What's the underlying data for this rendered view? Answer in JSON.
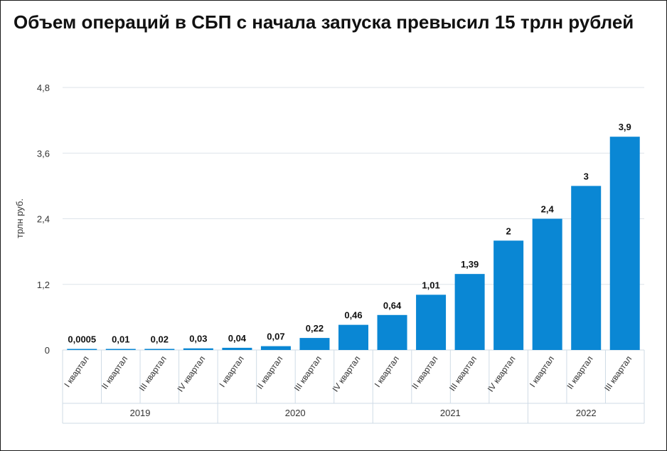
{
  "title": "Объем операций в СБП с начала запуска превысил 15 трлн рублей",
  "colors": {
    "bar": "#0a87d4",
    "grid": "#dde3ea",
    "axis_text": "#333333",
    "value_text": "#111111",
    "table_border": "#cfdbe6"
  },
  "chart_data": {
    "type": "bar",
    "title": "Объем операций в СБП с начала запуска превысил 15 трлн рублей",
    "xlabel": "",
    "ylabel": "трлн руб.",
    "ylim": [
      0,
      4.8
    ],
    "yticks": [
      0,
      1.2,
      2.4,
      3.6,
      4.8
    ],
    "ytick_labels": [
      "0",
      "1,2",
      "2,4",
      "3,6",
      "4,8"
    ],
    "grid": true,
    "categories": [
      "I квартал",
      "II квартал",
      "III квартал",
      "IV квартал",
      "I квартал",
      "II квартал",
      "III квартал",
      "IV квартал",
      "I квартал",
      "II квартал",
      "III квартал",
      "IV квартал",
      "I квартал",
      "II квартал",
      "III квартал"
    ],
    "groups": [
      {
        "label": "2019",
        "count": 4
      },
      {
        "label": "2020",
        "count": 4
      },
      {
        "label": "2021",
        "count": 4
      },
      {
        "label": "2022",
        "count": 3
      }
    ],
    "values": [
      0.0005,
      0.01,
      0.02,
      0.03,
      0.04,
      0.07,
      0.22,
      0.46,
      0.64,
      1.01,
      1.39,
      2,
      2.4,
      3,
      3.9
    ],
    "value_labels": [
      "0,0005",
      "0,01",
      "0,02",
      "0,03",
      "0,04",
      "0,07",
      "0,22",
      "0,46",
      "0,64",
      "1,01",
      "1,39",
      "2",
      "2,4",
      "3",
      "3,9"
    ]
  }
}
